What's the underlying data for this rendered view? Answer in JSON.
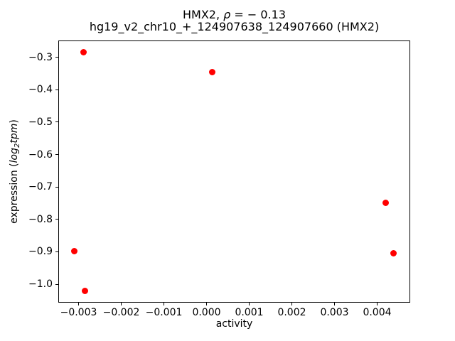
{
  "chart_data": {
    "type": "scatter",
    "title": {
      "line1_parts": {
        "prefix": "HMX2, ",
        "rho": "ρ",
        "suffix": " = − 0.13"
      },
      "line2": "hg19_v2_chr10_+_124907638_124907660 (HMX2)"
    },
    "xlabel": "activity",
    "ylabel_parts": {
      "prefix": "expression (",
      "italic1": "log",
      "sub": "2",
      "italic2": "tpm",
      "suffix": ")"
    },
    "points": [
      {
        "x": -0.0031,
        "y": -0.897
      },
      {
        "x": -0.00288,
        "y": -0.285
      },
      {
        "x": -0.00285,
        "y": -1.02
      },
      {
        "x": 0.00014,
        "y": -0.345
      },
      {
        "x": 0.0042,
        "y": -0.75
      },
      {
        "x": 0.00438,
        "y": -0.905
      }
    ],
    "xlim": [
      -0.003475,
      0.004775
    ],
    "ylim": [
      -1.057,
      -0.248
    ],
    "xtick_values": [
      -0.003,
      -0.002,
      -0.001,
      0.0,
      0.001,
      0.002,
      0.003,
      0.004
    ],
    "xtick_labels": [
      "−0.003",
      "−0.002",
      "−0.001",
      "0.000",
      "0.001",
      "0.002",
      "0.003",
      "0.004"
    ],
    "ytick_values": [
      -0.3,
      -0.4,
      -0.5,
      -0.6,
      -0.7,
      -0.8,
      -0.9,
      -1.0
    ],
    "ytick_labels": [
      "−0.3",
      "−0.4",
      "−0.5",
      "−0.6",
      "−0.7",
      "−0.8",
      "−0.9",
      "−1.0"
    ],
    "marker_color": "#ff0000",
    "text_color": "#000000",
    "grid": false,
    "legend": null
  }
}
